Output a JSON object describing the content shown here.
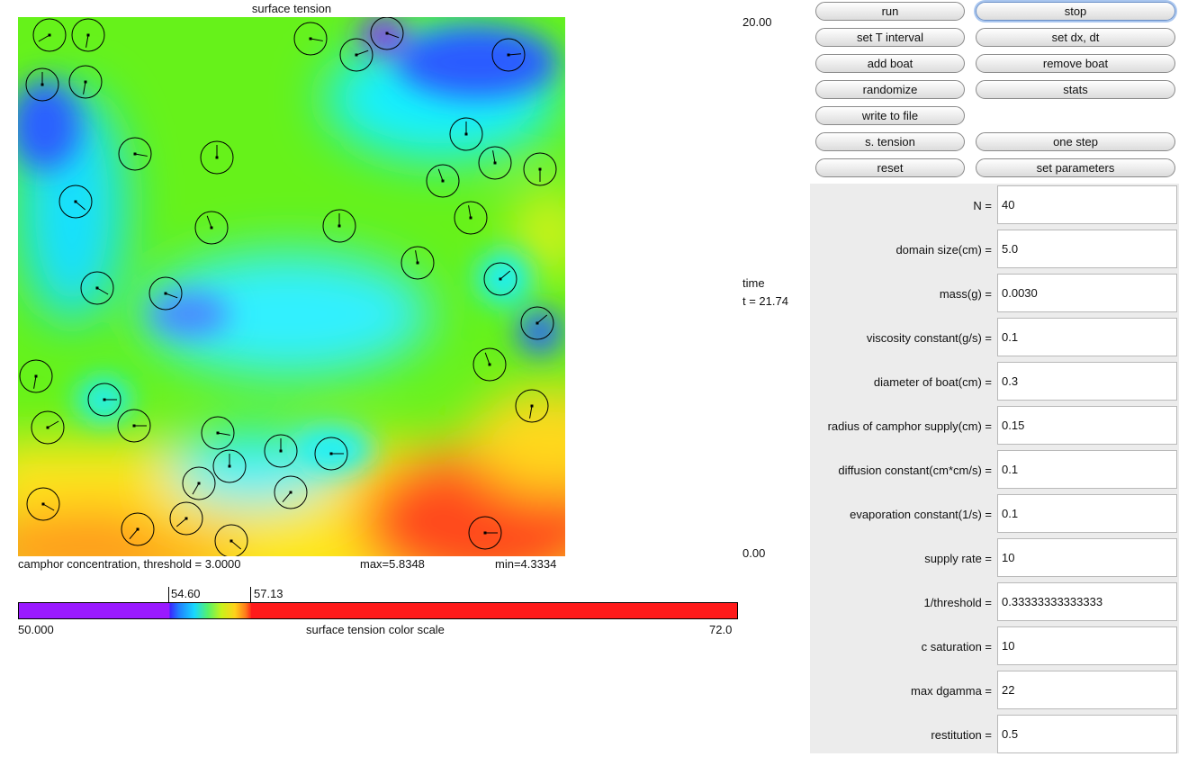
{
  "simulation": {
    "title": "surface tension",
    "caption_left": "camphor concentration, threshold = 3.0000",
    "caption_max": "max=5.8348",
    "caption_min": "min=4.3334"
  },
  "colors": {
    "field_green": "#66f21a",
    "field_cyan": "#18f0ff",
    "field_blue": "#2060ff",
    "field_purple": "#8a20ff",
    "field_yellow": "#ffe61a",
    "field_orange": "#ff9a1a",
    "field_red": "#ff2a1a",
    "panel_gray": "#ececec"
  },
  "color_scale": {
    "title": "surface tension color scale",
    "min": "50.000",
    "max": "72.0",
    "low_threshold": "54.60",
    "high_threshold": "57.13"
  },
  "time_axis": {
    "top_value": "20.00",
    "label": "time",
    "current": "t = 21.74",
    "bottom_value": "0.00"
  },
  "buttons": [
    {
      "id": "run",
      "label": "run"
    },
    {
      "id": "stop",
      "label": "stop"
    },
    {
      "id": "set-t-interval",
      "label": "set T interval"
    },
    {
      "id": "set-dx-dt",
      "label": "set dx, dt"
    },
    {
      "id": "add-boat",
      "label": "add boat"
    },
    {
      "id": "remove-boat",
      "label": "remove boat"
    },
    {
      "id": "randomize",
      "label": "randomize"
    },
    {
      "id": "stats",
      "label": "stats"
    },
    {
      "id": "write-to-file",
      "label": "write to file"
    },
    {
      "id": "s-tension",
      "label": "s. tension"
    },
    {
      "id": "one-step",
      "label": "one step"
    },
    {
      "id": "reset",
      "label": "reset"
    },
    {
      "id": "set-parameters",
      "label": "set parameters"
    }
  ],
  "parameters": [
    {
      "label": "N =",
      "value": "40"
    },
    {
      "label": "domain size(cm) =",
      "value": "5.0"
    },
    {
      "label": "mass(g) =",
      "value": "0.0030"
    },
    {
      "label": "viscosity constant(g/s) =",
      "value": "0.1"
    },
    {
      "label": "diameter of boat(cm) =",
      "value": "0.3"
    },
    {
      "label": "radius of camphor supply(cm) =",
      "value": "0.15"
    },
    {
      "label": "diffusion constant(cm*cm/s) =",
      "value": "0.1"
    },
    {
      "label": "evaporation constant(1/s) =",
      "value": "0.1"
    },
    {
      "label": "supply rate =",
      "value": "10"
    },
    {
      "label": "1/threshold =",
      "value": "0.33333333333333"
    },
    {
      "label": "c saturation =",
      "value": "10"
    },
    {
      "label": "max dgamma =",
      "value": "22"
    },
    {
      "label": "restitution =",
      "value": "0.5"
    }
  ]
}
